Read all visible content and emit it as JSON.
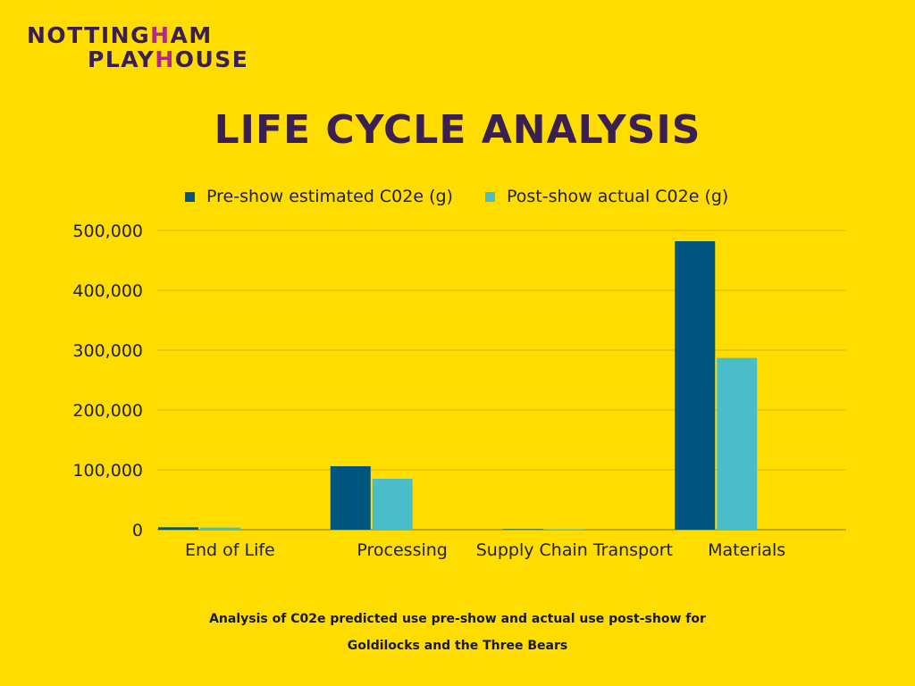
{
  "logo": {
    "line1_pre": "NOTTING",
    "line1_accent": "H",
    "line1_post": "AM",
    "line2_pre": "PLAY",
    "line2_accent": "H",
    "line2_post": "OUSE"
  },
  "colors": {
    "background": "#FFDD00",
    "title": "#3A1F52",
    "accent": "#B2298A",
    "series_pre": "#00567F",
    "series_post": "#4BBDC9",
    "grid": "#D4B800"
  },
  "caption": {
    "line1": "Analysis of C02e predicted use pre-show and actual use post-show for",
    "line2": "Goldilocks and the Three Bears"
  },
  "chart_data": {
    "type": "bar",
    "title": "LIFE CYCLE ANALYSIS",
    "xlabel": "",
    "ylabel": "",
    "categories": [
      "End of Life",
      "Processing",
      "Supply Chain Transport",
      "Materials"
    ],
    "series": [
      {
        "name": "Pre-show estimated C02e (g)",
        "values": [
          4000,
          106000,
          1000,
          482000
        ]
      },
      {
        "name": "Post-show actual C02e (g)",
        "values": [
          3500,
          85000,
          800,
          287000
        ]
      }
    ],
    "ylim": [
      0,
      500000
    ],
    "yticks": [
      0,
      100000,
      200000,
      300000,
      400000,
      500000
    ],
    "ytick_labels": [
      "0",
      "100,000",
      "200,000",
      "300,000",
      "400,000",
      "500,000"
    ],
    "grid": true,
    "legend_position": "top"
  }
}
